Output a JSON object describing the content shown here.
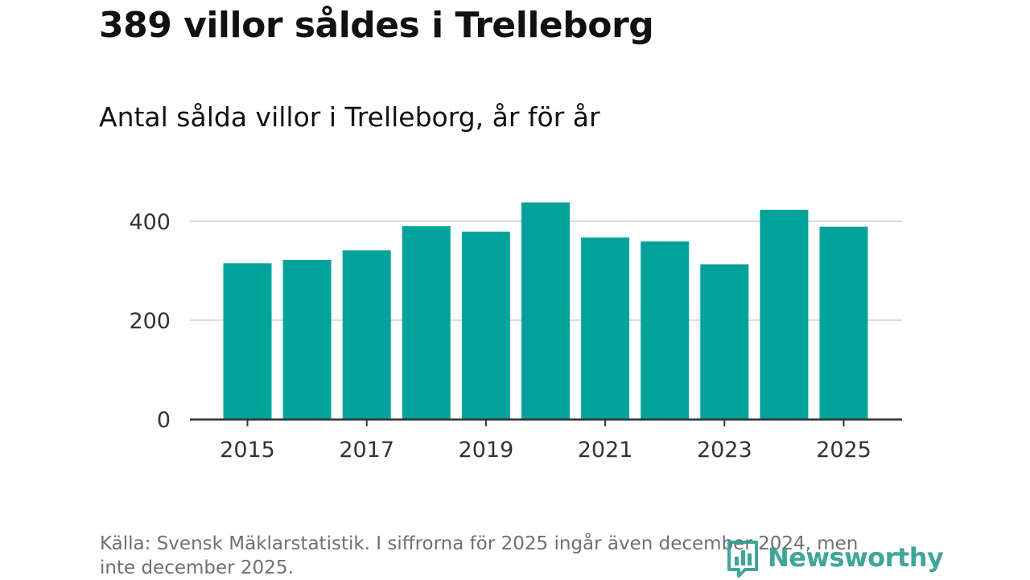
{
  "header": {
    "title": "389 villor såldes i Trelleborg",
    "subtitle": "Antal sålda villor i Trelleborg, år för år"
  },
  "footer": {
    "source": "Källa: Svensk Mäklarstatistik. I siffrorna för 2025 ingår även december 2024, men inte december 2025.",
    "logo_text": "Newsworthy"
  },
  "colors": {
    "bar": "#00A39A",
    "grid": "#dddddd",
    "axis": "#333333",
    "logo": "#2a9d8f"
  },
  "chart_data": {
    "type": "bar",
    "title": "Antal sålda villor i Trelleborg, år för år",
    "xlabel": "",
    "ylabel": "",
    "categories": [
      "2015",
      "2016",
      "2017",
      "2018",
      "2019",
      "2020",
      "2021",
      "2022",
      "2023",
      "2024",
      "2025"
    ],
    "values": [
      315,
      322,
      341,
      390,
      379,
      438,
      367,
      359,
      313,
      423,
      389
    ],
    "x_tick_labels": [
      "2015",
      "2017",
      "2019",
      "2021",
      "2023",
      "2025"
    ],
    "y_ticks": [
      0,
      200,
      400
    ],
    "y_tick_labels": [
      "0",
      "200",
      "400"
    ],
    "ylim": [
      0,
      450
    ],
    "grid": true
  }
}
